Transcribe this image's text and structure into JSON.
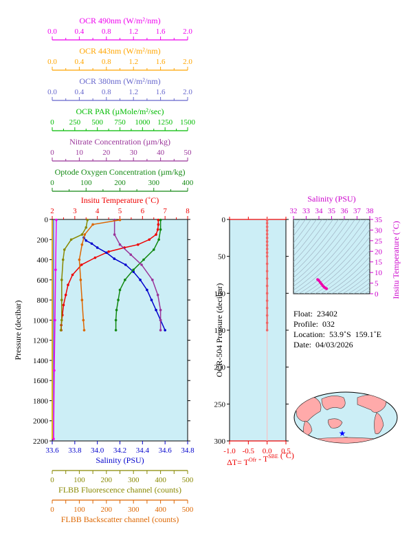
{
  "chart_data": [
    {
      "type": "line",
      "title": "",
      "y_axis": {
        "label": "Pressure (decibar)",
        "range": [
          2200,
          0
        ],
        "ticks": [
          0,
          200,
          400,
          600,
          800,
          1000,
          1200,
          1400,
          1600,
          1800,
          2000,
          2200
        ]
      },
      "background": "#cceef6",
      "top_axes": [
        {
          "id": "ocr490",
          "label": "OCR 490nm (W/m²/nm)",
          "color": "#ee00ee",
          "range": [
            0,
            2.0
          ],
          "ticks": [
            "0.0",
            "0.4",
            "0.8",
            "1.2",
            "1.6",
            "2.0"
          ]
        },
        {
          "id": "ocr443",
          "label": "OCR 443nm (W/m²/nm)",
          "color": "#ffa500",
          "range": [
            0,
            2.0
          ],
          "ticks": [
            "0.0",
            "0.4",
            "0.8",
            "1.2",
            "1.6",
            "2.0"
          ]
        },
        {
          "id": "ocr380",
          "label": "OCR 380nm (W/m²/nm)",
          "color": "#6666cc",
          "range": [
            0,
            2.0
          ],
          "ticks": [
            "0.0",
            "0.4",
            "0.8",
            "1.2",
            "1.6",
            "2.0"
          ]
        },
        {
          "id": "par",
          "label": "OCR PAR (µMole/m²/sec)",
          "color": "#00bb00",
          "range": [
            0,
            1500
          ],
          "ticks": [
            "0",
            "250",
            "500",
            "750",
            "1000",
            "1250",
            "1500"
          ]
        },
        {
          "id": "nitrate",
          "label": "Nitrate Concentration (µm/kg)",
          "color": "#993399",
          "range": [
            0,
            50
          ],
          "ticks": [
            "0",
            "10",
            "20",
            "30",
            "40",
            "50"
          ]
        },
        {
          "id": "oxygen",
          "label": "Optode Oxygen Concentration (µm/kg)",
          "color": "#118811",
          "range": [
            0,
            400
          ],
          "ticks": [
            "0",
            "100",
            "200",
            "300",
            "400"
          ]
        },
        {
          "id": "temp",
          "label": "Insitu Temperature (˚C)",
          "color": "#ee0000",
          "range": [
            2,
            8
          ],
          "ticks": [
            "2",
            "3",
            "4",
            "5",
            "6",
            "7",
            "8"
          ]
        }
      ],
      "bottom_axes": [
        {
          "id": "sal",
          "label": "Salinity (PSU)",
          "color": "#0000cc",
          "range": [
            33.6,
            34.8
          ],
          "ticks": [
            "33.6",
            "33.8",
            "34.0",
            "34.2",
            "34.4",
            "34.6",
            "34.8"
          ]
        },
        {
          "id": "fluo",
          "label": "FLBB Fluorescence channel (counts)",
          "color": "#888800",
          "range": [
            0,
            500
          ],
          "ticks": [
            "0",
            "50",
            "100",
            "150",
            "200",
            "250",
            "300",
            "350",
            "400",
            "450",
            "500"
          ]
        },
        {
          "id": "bbp",
          "label": "FLBB Backscatter channel (counts)",
          "color": "#dd6600",
          "range": [
            0,
            500
          ],
          "ticks": [
            "0",
            "50",
            "100",
            "150",
            "200",
            "250",
            "300",
            "350",
            "400",
            "450",
            "500"
          ]
        }
      ],
      "series": [
        {
          "name": "Insitu Temperature",
          "axis": "temp",
          "color": "#ee0000",
          "points": [
            [
              6.7,
              5
            ],
            [
              6.7,
              50
            ],
            [
              6.68,
              100
            ],
            [
              6.6,
              150
            ],
            [
              6.3,
              200
            ],
            [
              5.8,
              250
            ],
            [
              5.2,
              280
            ],
            [
              4.5,
              320
            ],
            [
              3.9,
              380
            ],
            [
              3.3,
              450
            ],
            [
              2.9,
              550
            ],
            [
              2.7,
              650
            ],
            [
              2.6,
              750
            ],
            [
              2.5,
              850
            ],
            [
              2.45,
              950
            ],
            [
              2.4,
              1050
            ],
            [
              2.4,
              1100
            ]
          ]
        },
        {
          "name": "Salinity",
          "axis": "sal",
          "color": "#0000cc",
          "points": [
            [
              33.88,
              180
            ],
            [
              33.9,
              210
            ],
            [
              33.95,
              240
            ],
            [
              34.0,
              280
            ],
            [
              34.08,
              330
            ],
            [
              34.15,
              390
            ],
            [
              34.25,
              450
            ],
            [
              34.32,
              520
            ],
            [
              34.38,
              600
            ],
            [
              34.44,
              700
            ],
            [
              34.48,
              800
            ],
            [
              34.52,
              900
            ],
            [
              34.56,
              1000
            ],
            [
              34.6,
              1100
            ]
          ]
        },
        {
          "name": "Optode Oxygen Concentration",
          "axis": "oxygen",
          "color": "#118811",
          "points": [
            [
              320,
              5
            ],
            [
              320,
              100
            ],
            [
              315,
              200
            ],
            [
              300,
              300
            ],
            [
              270,
              400
            ],
            [
              240,
              500
            ],
            [
              215,
              600
            ],
            [
              200,
              700
            ],
            [
              195,
              800
            ],
            [
              190,
              900
            ],
            [
              188,
              1000
            ],
            [
              188,
              1100
            ]
          ]
        },
        {
          "name": "Nitrate Concentration",
          "axis": "nitrate",
          "color": "#993399",
          "points": [
            [
              23,
              5
            ],
            [
              23,
              150
            ],
            [
              25,
              250
            ],
            [
              29,
              350
            ],
            [
              33,
              450
            ],
            [
              37,
              600
            ],
            [
              39,
              750
            ],
            [
              40,
              900
            ],
            [
              40,
              1000
            ],
            [
              40,
              1100
            ]
          ]
        },
        {
          "name": "OCR PAR",
          "axis": "par",
          "color": "#00bb00",
          "points": [
            [
              0,
              5
            ],
            [
              0,
              2180
            ]
          ]
        },
        {
          "name": "OCR 380nm",
          "axis": "ocr380",
          "color": "#6666cc",
          "points": [
            [
              0.02,
              5
            ],
            [
              0.02,
              2180
            ]
          ]
        },
        {
          "name": "OCR 490nm",
          "axis": "ocr490",
          "color": "#ee00ee",
          "points": [
            [
              0.06,
              5
            ],
            [
              0.05,
              500
            ],
            [
              0.04,
              1000
            ],
            [
              0.03,
              1500
            ],
            [
              0.02,
              2180
            ]
          ]
        },
        {
          "name": "OCR 443nm",
          "axis": "ocr443",
          "color": "#ffa500",
          "points": [
            [
              0.0,
              5
            ],
            [
              0.0,
              2180
            ]
          ]
        },
        {
          "name": "FLBB Fluorescence",
          "axis": "fluo",
          "color": "#888800",
          "points": [
            [
              130,
              5
            ],
            [
              125,
              80
            ],
            [
              110,
              150
            ],
            [
              70,
              200
            ],
            [
              45,
              300
            ],
            [
              40,
              400
            ],
            [
              35,
              600
            ],
            [
              35,
              800
            ],
            [
              35,
              1000
            ],
            [
              32,
              1100
            ]
          ]
        },
        {
          "name": "FLBB Backscatter",
          "axis": "bbp",
          "color": "#dd6600",
          "points": [
            [
              250,
              5
            ],
            [
              150,
              50
            ],
            [
              120,
              150
            ],
            [
              110,
              250
            ],
            [
              100,
              400
            ],
            [
              105,
              600
            ],
            [
              110,
              800
            ],
            [
              115,
              1000
            ],
            [
              118,
              1100
            ]
          ]
        }
      ]
    },
    {
      "type": "scatter",
      "x_axis": {
        "label": "ΔT= Tᴼᶠʳ - Tˢᴮᴱ (˚C)",
        "range": [
          -1.0,
          0.5
        ],
        "ticks": [
          "-1.0",
          "-0.5",
          "0.0",
          "0.5"
        ],
        "color": "#ee0000"
      },
      "x_label_parts": {
        "lead": "ΔT= T",
        "sup1": "Ofr",
        "mid": " - T",
        "sup2": "SBE",
        "tail": " (˚C)"
      },
      "y_axis": {
        "label": "OCR-504 Pressure (decibar)",
        "range": [
          300,
          0
        ],
        "ticks": [
          "0",
          "50",
          "100",
          "150",
          "200",
          "250",
          "300"
        ]
      },
      "background": "#cceef6",
      "series": [
        {
          "name": "ΔT",
          "color": "#ee6666",
          "points": [
            [
              0.0,
              1
            ],
            [
              0.0,
              5
            ],
            [
              0.0,
              10
            ],
            [
              0.0,
              15
            ],
            [
              0.0,
              20
            ],
            [
              0.0,
              25
            ],
            [
              0.0,
              30
            ],
            [
              0.0,
              35
            ],
            [
              0.0,
              40
            ],
            [
              0.0,
              45
            ],
            [
              0.0,
              50
            ],
            [
              0.0,
              60
            ],
            [
              0.0,
              70
            ],
            [
              0.0,
              80
            ],
            [
              0.0,
              90
            ],
            [
              0.0,
              100
            ],
            [
              0.0,
              110
            ],
            [
              0.0,
              120
            ],
            [
              0.0,
              130
            ],
            [
              0.0,
              140
            ],
            [
              0.0,
              150
            ]
          ]
        }
      ]
    },
    {
      "type": "scatter",
      "x_axis": {
        "label": "Salinity (PSU)",
        "range": [
          32,
          38
        ],
        "ticks": [
          "32",
          "33",
          "34",
          "35",
          "36",
          "37",
          "38"
        ],
        "color": "#cc00cc"
      },
      "y_axis": {
        "label": "Insitu Temperature (˚C)",
        "range": [
          0,
          35
        ],
        "ticks": [
          "0",
          "5",
          "10",
          "15",
          "20",
          "25",
          "30",
          "35"
        ],
        "color": "#cc00cc"
      },
      "background": "#cceef6",
      "series": [
        {
          "name": "T-S",
          "color": "#ee00aa",
          "points": [
            [
              33.9,
              6.7
            ],
            [
              34.0,
              6.2
            ],
            [
              34.1,
              5.4
            ],
            [
              34.2,
              4.6
            ],
            [
              34.3,
              3.8
            ],
            [
              34.4,
              3.2
            ],
            [
              34.5,
              2.7
            ],
            [
              34.6,
              2.4
            ]
          ]
        }
      ]
    }
  ],
  "float_info": {
    "float": "Float:  23402",
    "profile": "Profile:  032",
    "location": "Location:  53.9˚S  159.1˚E",
    "date": "Date:  04/03/2026"
  },
  "map": {
    "land_color": "#ffaaaa",
    "ocean_color": "#cceef6",
    "marker_color": "#0000ff"
  }
}
